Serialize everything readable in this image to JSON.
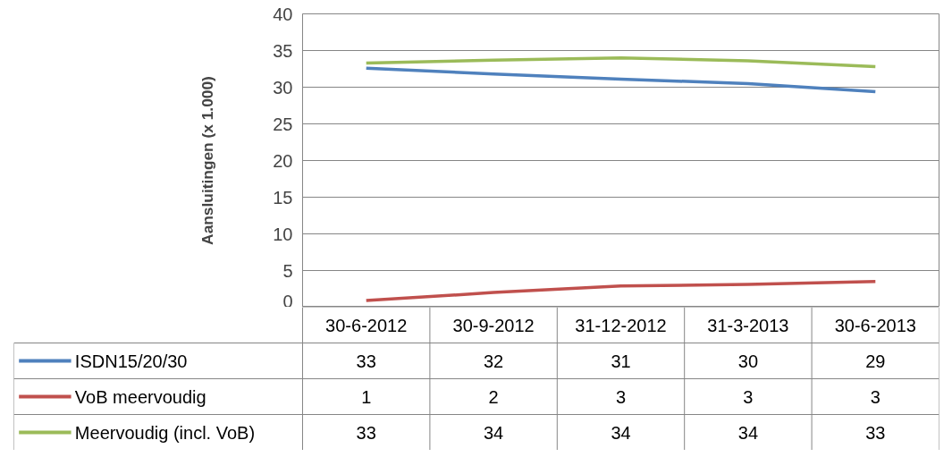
{
  "chart_data": {
    "type": "line",
    "ylabel": "Aansluitingen (x 1.000)",
    "categories": [
      "30-6-2012",
      "30-9-2012",
      "31-12-2012",
      "31-3-2013",
      "30-6-2013"
    ],
    "series": [
      {
        "name": "ISDN15/20/30",
        "color": "#4f81bd",
        "values": [
          32.6,
          31.8,
          31.1,
          30.5,
          29.4
        ],
        "value_labels": [
          "33",
          "32",
          "31",
          "30",
          "29"
        ]
      },
      {
        "name": "VoB meervoudig",
        "color": "#c0504d",
        "values": [
          0.9,
          2.0,
          2.9,
          3.1,
          3.5
        ],
        "value_labels": [
          "1",
          "2",
          "3",
          "3",
          "3"
        ]
      },
      {
        "name": "Meervoudig (incl. VoB)",
        "color": "#9bbb59",
        "values": [
          33.3,
          33.7,
          34.0,
          33.6,
          32.8
        ],
        "value_labels": [
          "33",
          "34",
          "34",
          "34",
          "33"
        ]
      }
    ],
    "ylim": [
      0,
      40
    ],
    "yticks": [
      0,
      5,
      10,
      15,
      20,
      25,
      30,
      35,
      40
    ],
    "grid": "y",
    "legend": "bottom",
    "marker": "none",
    "line_style": "solid"
  }
}
